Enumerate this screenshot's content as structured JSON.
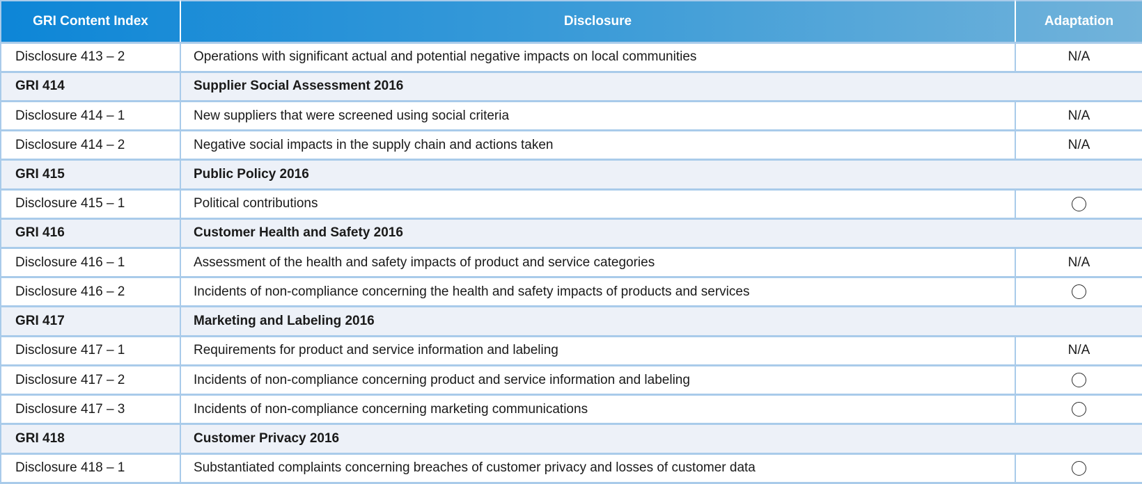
{
  "table": {
    "columns": [
      "GRI Content Index",
      "Disclosure",
      "Adaptation"
    ],
    "rows": [
      {
        "type": "disclosure",
        "id": "Disclosure 413 – 2",
        "description": "Operations with significant actual and potential negative impacts on local communities",
        "adaptation": "N/A"
      },
      {
        "type": "section",
        "code": "GRI 414",
        "title": "Supplier Social Assessment 2016"
      },
      {
        "type": "disclosure",
        "id": "Disclosure 414 – 1",
        "description": "New suppliers that were screened using social criteria",
        "adaptation": "N/A"
      },
      {
        "type": "disclosure",
        "id": "Disclosure 414 – 2",
        "description": "Negative social impacts in the supply chain and actions taken",
        "adaptation": "N/A"
      },
      {
        "type": "section",
        "code": "GRI 415",
        "title": "Public Policy 2016"
      },
      {
        "type": "disclosure",
        "id": "Disclosure 415 – 1",
        "description": "Political contributions",
        "adaptation": "circle"
      },
      {
        "type": "section",
        "code": "GRI 416",
        "title": "Customer Health and Safety 2016"
      },
      {
        "type": "disclosure",
        "id": "Disclosure 416 – 1",
        "description": "Assessment of the health and safety impacts of product and service categories",
        "adaptation": "N/A"
      },
      {
        "type": "disclosure",
        "id": "Disclosure 416 – 2",
        "description": "Incidents of non-compliance concerning the health and safety impacts of products and services",
        "adaptation": "circle"
      },
      {
        "type": "section",
        "code": "GRI 417",
        "title": "Marketing and Labeling 2016"
      },
      {
        "type": "disclosure",
        "id": "Disclosure 417 – 1",
        "description": "Requirements for product and service information and labeling",
        "adaptation": "N/A"
      },
      {
        "type": "disclosure",
        "id": "Disclosure 417 – 2",
        "description": "Incidents of non-compliance concerning product and service information and labeling",
        "adaptation": "circle"
      },
      {
        "type": "disclosure",
        "id": "Disclosure 417 – 3",
        "description": "Incidents of non-compliance concerning marketing communications",
        "adaptation": "circle"
      },
      {
        "type": "section",
        "code": "GRI 418",
        "title": "Customer Privacy 2016"
      },
      {
        "type": "disclosure",
        "id": "Disclosure 418 – 1",
        "description": "Substantiated complaints concerning breaches of customer privacy and losses of customer data",
        "adaptation": "circle"
      }
    ],
    "icons": {
      "adaptation_circle_icon": "○"
    },
    "colors": {
      "header_gradient_left": "#0d86d7",
      "header_gradient_right": "#72b3da",
      "header_text": "#ffffff",
      "section_row_bg": "#edf1f8",
      "border": "#a9cbea",
      "body_text": "#1a1a1a"
    }
  }
}
